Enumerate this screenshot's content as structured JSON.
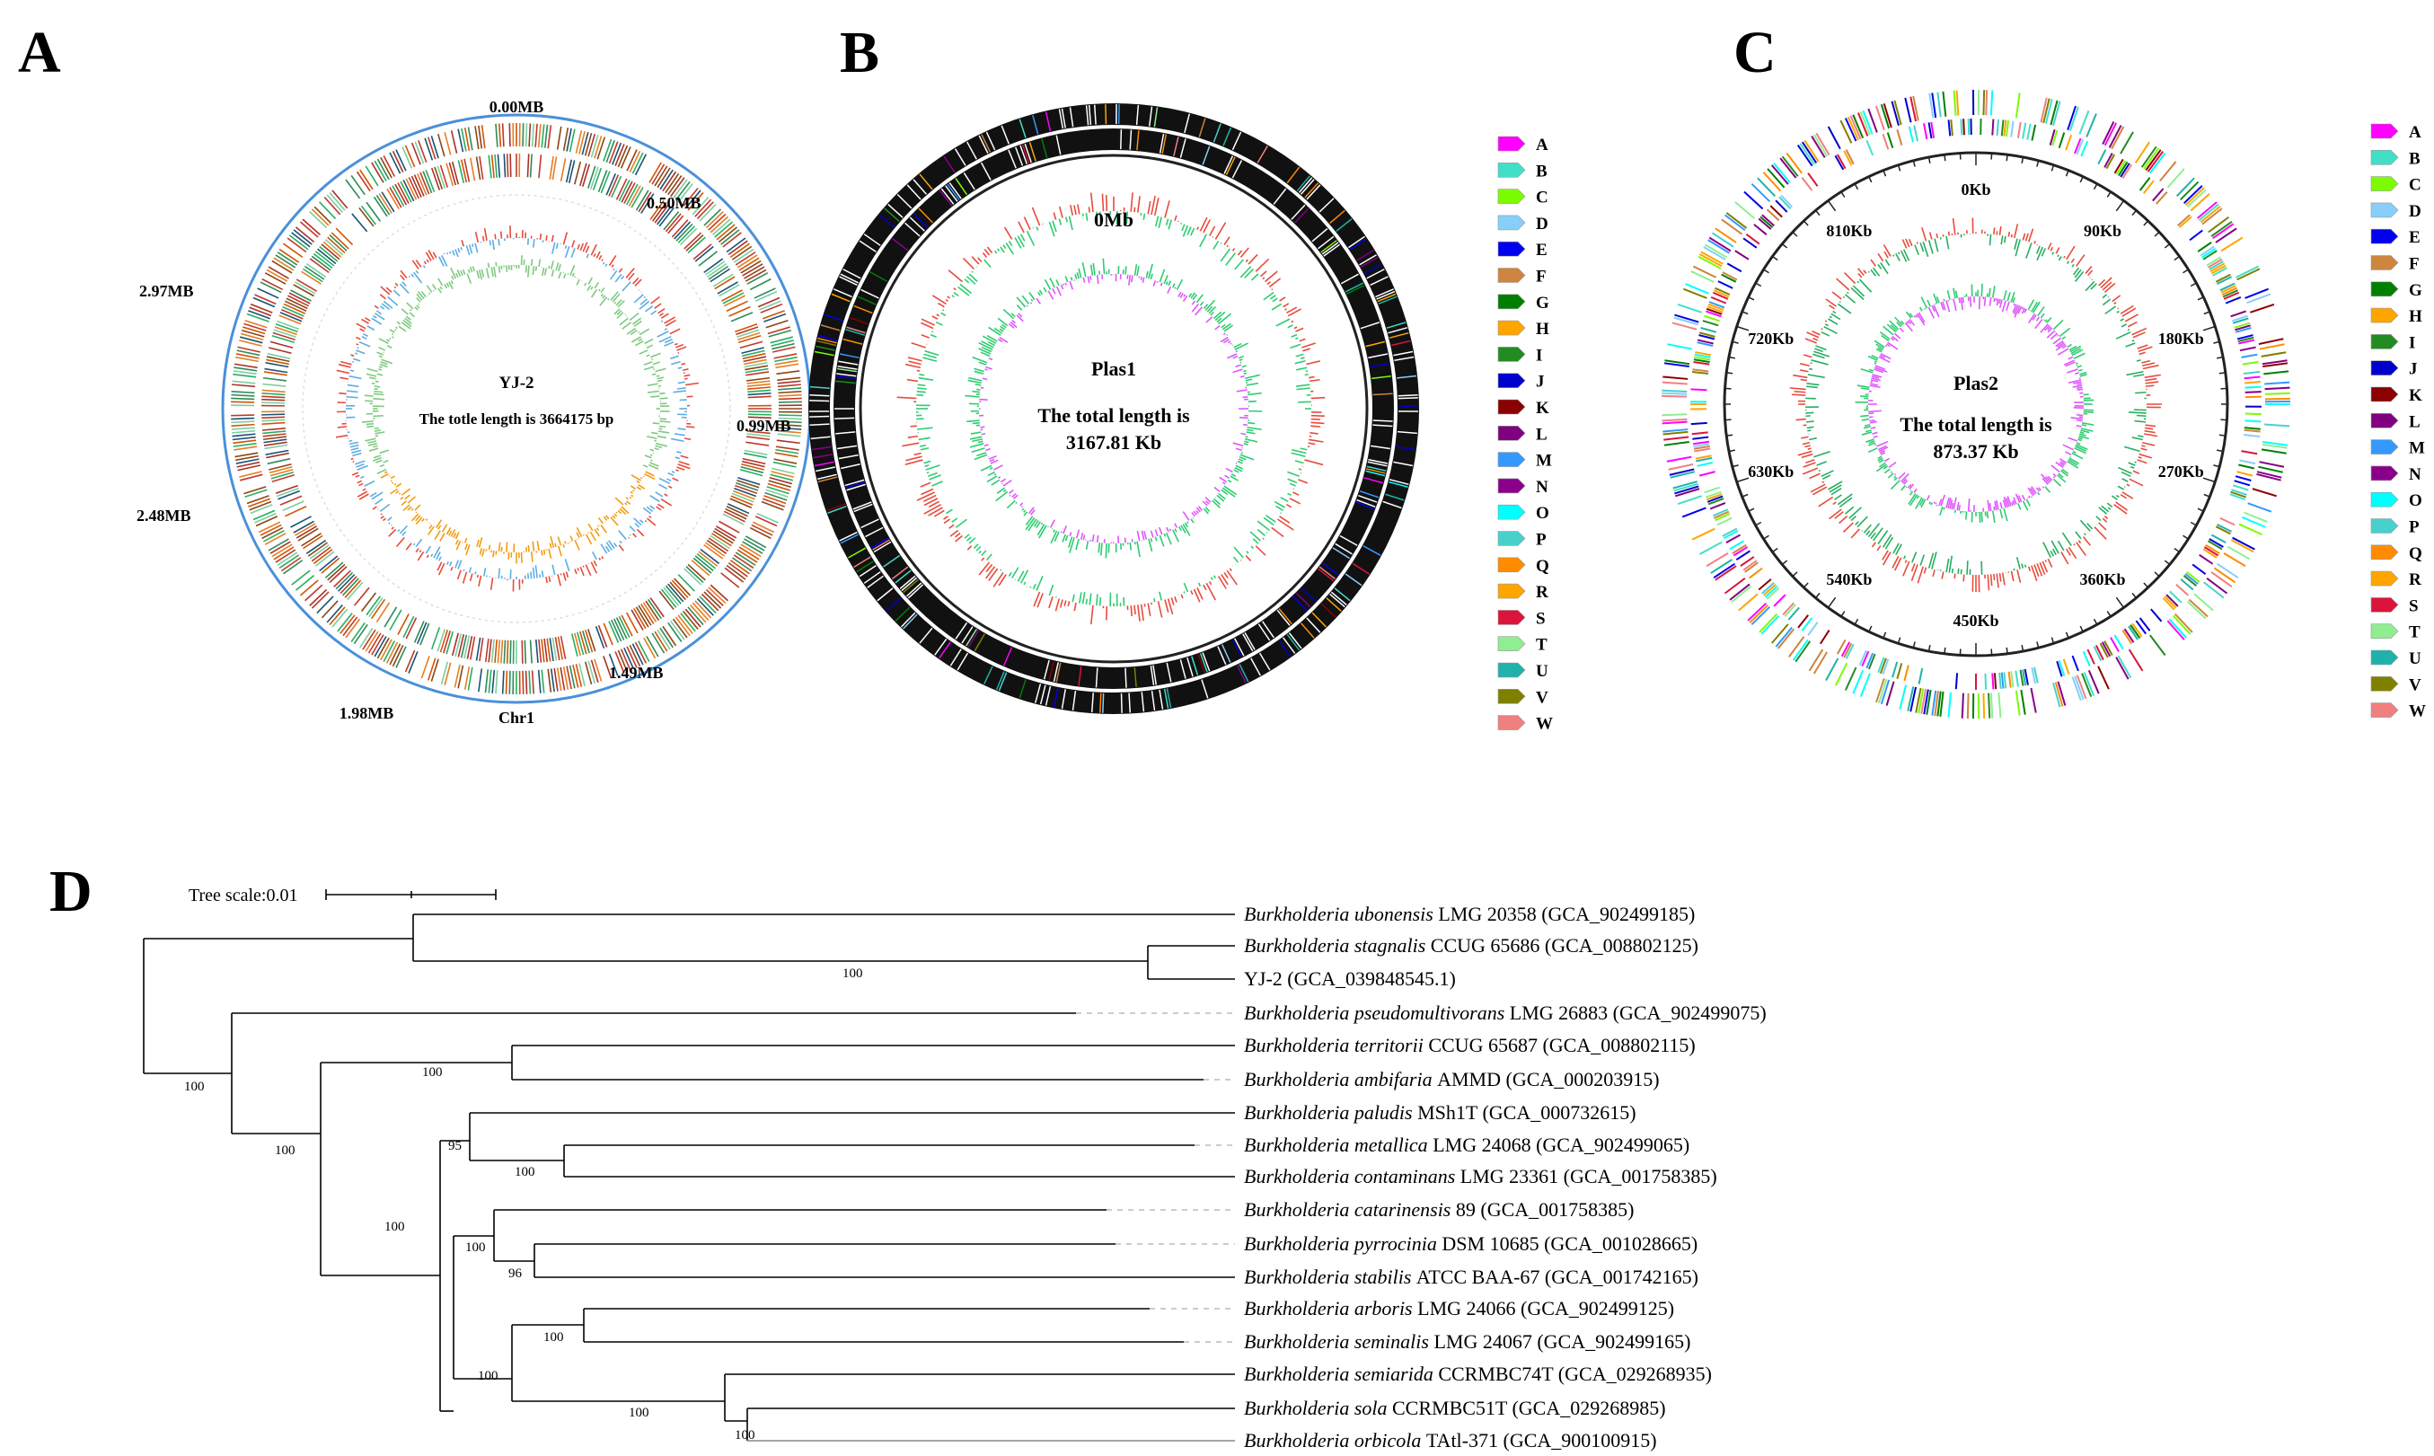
{
  "panels": {
    "a": "A",
    "b": "B",
    "c": "C",
    "d": "D"
  },
  "chromosome": {
    "name": "YJ-2",
    "length_text": "The totle length is 3664175 bp",
    "label": "Chr1",
    "ticks": [
      "0.00MB",
      "0.50MB",
      "0.99MB",
      "1.49MB",
      "1.98MB",
      "2.48MB",
      "2.97MB"
    ]
  },
  "plasmid1": {
    "name": "Plas1",
    "length_line1": "The total length is",
    "length_line2": "3167.81 Kb",
    "start_tick": "0Mb"
  },
  "plasmid2": {
    "name": "Plas2",
    "length_line1": "The total length is",
    "length_line2": "873.37 Kb",
    "ticks": [
      "0Kb",
      "90Kb",
      "180Kb",
      "270Kb",
      "360Kb",
      "450Kb",
      "540Kb",
      "630Kb",
      "720Kb",
      "810Kb"
    ]
  },
  "cog_legend": [
    {
      "code": "A",
      "color": "#ff00ff"
    },
    {
      "code": "B",
      "color": "#40e0c8"
    },
    {
      "code": "C",
      "color": "#7cfc00"
    },
    {
      "code": "D",
      "color": "#87cefa"
    },
    {
      "code": "E",
      "color": "#0000ee"
    },
    {
      "code": "F",
      "color": "#cd853f"
    },
    {
      "code": "G",
      "color": "#008000"
    },
    {
      "code": "H",
      "color": "#ffa500"
    },
    {
      "code": "I",
      "color": "#228b22"
    },
    {
      "code": "J",
      "color": "#0000cd"
    },
    {
      "code": "K",
      "color": "#8b0000"
    },
    {
      "code": "L",
      "color": "#800080"
    },
    {
      "code": "M",
      "color": "#3399ff"
    },
    {
      "code": "N",
      "color": "#8b008b"
    },
    {
      "code": "O",
      "color": "#00ffff"
    },
    {
      "code": "P",
      "color": "#48d1cc"
    },
    {
      "code": "Q",
      "color": "#ff8c00"
    },
    {
      "code": "R",
      "color": "#ffa500"
    },
    {
      "code": "S",
      "color": "#dc143c"
    },
    {
      "code": "T",
      "color": "#90ee90"
    },
    {
      "code": "U",
      "color": "#20b2aa"
    },
    {
      "code": "V",
      "color": "#808000"
    },
    {
      "code": "W",
      "color": "#f08080"
    }
  ],
  "tree": {
    "scale_label": "Tree scale:0.01",
    "taxa": [
      {
        "genus": "Burkholderia",
        "species": "ubonensis",
        "strain": "LMG 20358",
        "accession": "(GCA_902499185)"
      },
      {
        "genus": "Burkholderia",
        "species": "stagnalis",
        "strain": "CCUG 65686",
        "accession": "(GCA_008802125)"
      },
      {
        "genus": "",
        "species": "",
        "strain": "YJ-2",
        "accession": "(GCA_039848545.1)"
      },
      {
        "genus": "Burkholderia",
        "species": "pseudomultivorans",
        "strain": "LMG 26883",
        "accession": "(GCA_902499075)"
      },
      {
        "genus": "Burkholderia",
        "species": "territorii",
        "strain": "CCUG 65687",
        "accession": "(GCA_008802115)"
      },
      {
        "genus": "Burkholderia",
        "species": "ambifaria",
        "strain": "AMMD",
        "accession": "(GCA_000203915)"
      },
      {
        "genus": "Burkholderia",
        "species": "paludis",
        "strain": "MSh1T",
        "accession": "(GCA_000732615)"
      },
      {
        "genus": "Burkholderia",
        "species": "metallica",
        "strain": "LMG 24068",
        "accession": "(GCA_902499065)"
      },
      {
        "genus": "Burkholderia",
        "species": "contaminans",
        "strain": "LMG 23361",
        "accession": "(GCA_001758385)"
      },
      {
        "genus": "Burkholderia",
        "species": "catarinensis",
        "strain": "89",
        "accession": "(GCA_001758385)"
      },
      {
        "genus": "Burkholderia",
        "species": "pyrrocinia",
        "strain": "DSM 10685",
        "accession": "(GCA_001028665)"
      },
      {
        "genus": "Burkholderia",
        "species": "stabilis",
        "strain": "ATCC BAA-67",
        "accession": "(GCA_001742165)"
      },
      {
        "genus": "Burkholderia",
        "species": "arboris",
        "strain": "LMG 24066",
        "accession": "(GCA_902499125)"
      },
      {
        "genus": "Burkholderia",
        "species": "seminalis",
        "strain": "LMG 24067",
        "accession": "(GCA_902499165)"
      },
      {
        "genus": "Burkholderia",
        "species": "semiarida",
        "strain": "CCRMBC74T",
        "accession": "(GCA_029268935)"
      },
      {
        "genus": "Burkholderia",
        "species": "sola",
        "strain": "CCRMBC51T",
        "accession": "(GCA_029268985)"
      },
      {
        "genus": "Burkholderia",
        "species": "orbicola",
        "strain": "TAtl-371",
        "accession": "(GCA_900100915)"
      }
    ],
    "bootstrap": {
      "stagnalis_yj2": "100",
      "root_main": "100",
      "lower_clade": "100",
      "territorii_ambifaria": "100",
      "big_subclade": "100",
      "paludis_group": "95",
      "metallica_contaminans": "100",
      "catarinensis_group": "100",
      "pyrrocinia_stabilis": "96",
      "arboris_group": "100",
      "arboris_seminalis": "100",
      "semiarida_group": "100",
      "sola_orbicola": "100"
    }
  }
}
